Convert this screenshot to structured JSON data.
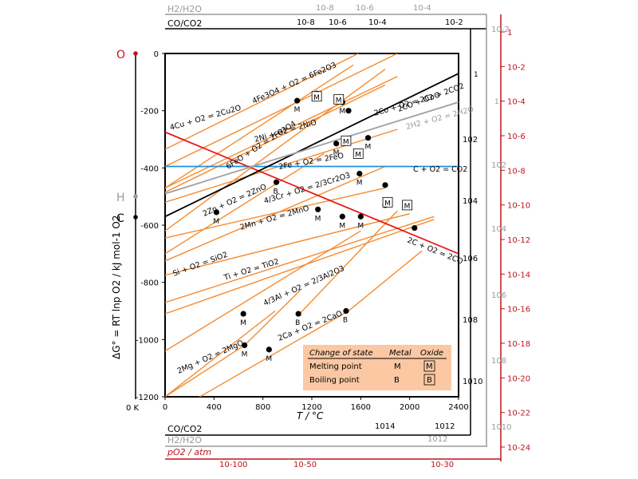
{
  "chart_data": {
    "type": "line",
    "title": "",
    "xlabel": "T / °C",
    "ylabel": "ΔG° = RT lnp O2 / kJ mol-1 O2",
    "xlim": [
      0,
      2400
    ],
    "ylim": [
      -1200,
      0
    ],
    "x_ticks": [
      "0",
      "400",
      "800",
      "1200",
      "1600",
      "2000",
      "2400"
    ],
    "y_ticks": [
      "0",
      "-200",
      "-400",
      "-600",
      "-800",
      "-1000",
      "-1200"
    ],
    "zero_kelvin_label": "0 K",
    "pivot_labels": {
      "O": "O",
      "H": "H",
      "C": "C"
    },
    "top_scales": {
      "h2_label": "H2/H2O",
      "co_label": "CO/CO2",
      "h2_ticks": [
        "10-8",
        "10-6",
        "10-4"
      ],
      "co_ticks": [
        "10-8",
        "10-6",
        "10-4",
        "10-2"
      ]
    },
    "bottom_scales": {
      "co_label": "CO/CO2",
      "h2_label": "H2/H2O",
      "po2_label": "pO2 / atm",
      "co_ticks": [
        "1014",
        "1012"
      ],
      "h2_ticks": [
        "1012"
      ],
      "po2_ticks": [
        "10-100",
        "10-50",
        "10-30"
      ]
    },
    "right_scales": {
      "co_ticks": [
        "102",
        "104",
        "106",
        "108",
        "1010"
      ],
      "h2_ticks": [
        "10-2",
        "1",
        "102",
        "104",
        "106",
        "108",
        "1010"
      ],
      "po2_ticks": [
        "1",
        "10-2",
        "10-4",
        "10-6",
        "10-8",
        "10-10",
        "10-12",
        "10-14",
        "10-16",
        "10-18",
        "10-20",
        "10-22",
        "10-24"
      ],
      "top_marker_1": "1",
      "top_marker_2": "1"
    },
    "series": [
      {
        "name": "4Fe3O4 + O2 = 6Fe2O3",
        "x": [
          0,
          1540
        ],
        "y": [
          -470,
          -40
        ]
      },
      {
        "name": "4Cu + O2 = 2Cu2O",
        "x": [
          0,
          1580
        ],
        "y": [
          -335,
          0
        ]
      },
      {
        "name": "",
        "x": [
          0,
          1900
        ],
        "y": [
          -395,
          0
        ]
      },
      {
        "name": "2Co + O2 = 2CoO",
        "x": [
          0,
          1900
        ],
        "y": [
          -470,
          -80
        ]
      },
      {
        "name": "2Ni + O2 = 2NiO",
        "x": [
          0,
          1800
        ],
        "y": [
          -485,
          -110
        ]
      },
      {
        "name": "6FeO + O2 = 2Fe3O4",
        "x": [
          0,
          1800
        ],
        "y": [
          -620,
          -55
        ]
      },
      {
        "name": "2Fe + O2 = 2FeO",
        "x": [
          0,
          1900
        ],
        "y": [
          -520,
          -265
        ]
      },
      {
        "name": "2Zn + O2 = 2ZnO",
        "x": [
          0,
          1300
        ],
        "y": [
          -700,
          -350
        ]
      },
      {
        "name": "4/3Cr + O2 = 2/3Cr2O3",
        "x": [
          0,
          1800
        ],
        "y": [
          -725,
          -395
        ]
      },
      {
        "name": "",
        "x": [
          0,
          1800
        ],
        "y": [
          -645,
          -470
        ]
      },
      {
        "name": "2Mn + O2 = 2MnO",
        "x": [
          0,
          2000
        ],
        "y": [
          -775,
          -560
        ]
      },
      {
        "name": "Si + O2 = SiO2",
        "x": [
          0,
          2200
        ],
        "y": [
          -870,
          -570
        ]
      },
      {
        "name": "Ti + O2 = TiO2",
        "x": [
          0,
          2200
        ],
        "y": [
          -910,
          -580
        ]
      },
      {
        "name": "4/3Al + O2 = 2/3Al2O3",
        "x": [
          0,
          1600
        ],
        "y": [
          -1040,
          -620
        ]
      },
      {
        "name": "",
        "x": [
          1100,
          1900
        ],
        "y": [
          -910,
          -550
        ]
      },
      {
        "name": "2Mg + O2 = 2MgO",
        "x": [
          0,
          650,
          1100
        ],
        "y": [
          -1200,
          -1020,
          -830
        ]
      },
      {
        "name": "2Ca + O2 = 2CaO",
        "x": [
          0,
          1500,
          2100
        ],
        "y": [
          -1270,
          -900,
          -690
        ]
      },
      {
        "name": "",
        "x": [
          0,
          900
        ],
        "y": [
          -1200,
          -900
        ]
      },
      {
        "name": "C + O2 = CO2",
        "x": [
          0,
          2400
        ],
        "y": [
          -395,
          -395
        ]
      },
      {
        "name": "2C + O2 = 2CO",
        "x": [
          0,
          2400
        ],
        "y": [
          -275,
          -700
        ]
      },
      {
        "name": "2CO + O2 = 2CO2",
        "x": [
          0,
          2400
        ],
        "y": [
          -570,
          -70
        ]
      },
      {
        "name": "2H2 + O2 = 2H2O",
        "x": [
          0,
          2400
        ],
        "y": [
          -490,
          -170
        ]
      }
    ],
    "colors": {
      "oxide": "#f58a2c",
      "co": "#e8191c",
      "co2": "#1f8fe0",
      "co_co2": "#000000",
      "h2": "#a0a0a0",
      "accent_red": "#c0141c"
    },
    "transition_points": [
      {
        "x": 640,
        "y": -910,
        "label": "M"
      },
      {
        "x": 650,
        "y": -1020,
        "label": "M"
      },
      {
        "x": 850,
        "y": -1035,
        "label": "M"
      },
      {
        "x": 1090,
        "y": -910,
        "label": "B"
      },
      {
        "x": 1480,
        "y": -900,
        "label": "B"
      },
      {
        "x": 420,
        "y": -555,
        "label": "M"
      },
      {
        "x": 910,
        "y": -450,
        "label": "B"
      },
      {
        "x": 1250,
        "y": -545,
        "label": "M"
      },
      {
        "x": 1450,
        "y": -570,
        "label": "M"
      },
      {
        "x": 1600,
        "y": -570,
        "label": "M"
      },
      {
        "x": 1590,
        "y": -420,
        "label": "M"
      },
      {
        "x": 1400,
        "y": -315,
        "label": "M"
      },
      {
        "x": 1660,
        "y": -295,
        "label": "M"
      },
      {
        "x": 1080,
        "y": -165,
        "label": "M"
      },
      {
        "x": 1450,
        "y": -170,
        "label": "M"
      },
      {
        "x": 1500,
        "y": -200,
        "label": ""
      },
      {
        "x": 1240,
        "y": -140,
        "label": ""
      },
      {
        "x": 1800,
        "y": -460,
        "label": ""
      },
      {
        "x": 1800,
        "y": -530,
        "label": ""
      },
      {
        "x": 2040,
        "y": -610,
        "label": ""
      }
    ],
    "boxed_oxide_markers": [
      "M",
      "M",
      "M",
      "M",
      "M",
      "M"
    ],
    "legend": {
      "title": "Change of state",
      "col_metal": "Metal",
      "col_oxide": "Oxide",
      "rows": [
        {
          "label": "Melting point",
          "metal": "M",
          "oxide": "M"
        },
        {
          "label": "Boiling point",
          "metal": "B",
          "oxide": "B"
        }
      ]
    }
  }
}
